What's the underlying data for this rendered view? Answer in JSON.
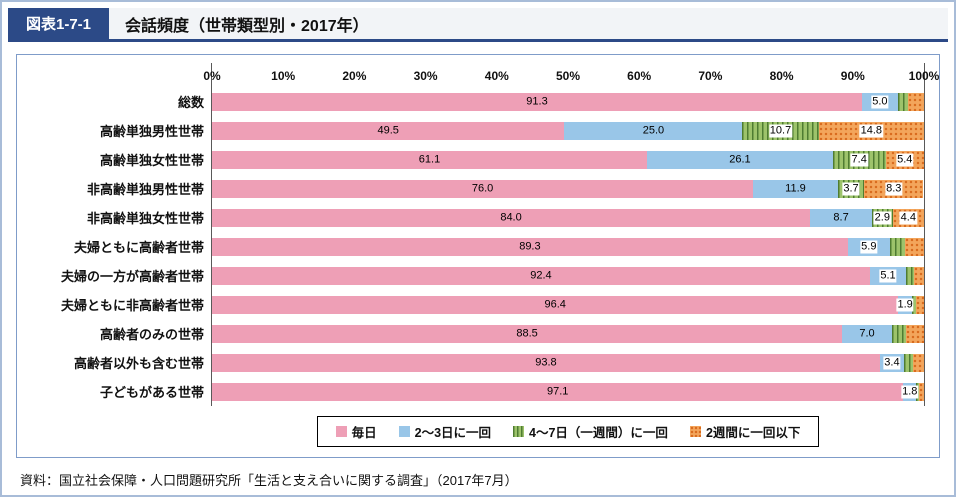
{
  "header": {
    "figure_label": "図表1-7-1",
    "title": "会話頻度（世帯類型別・2017年）"
  },
  "source": "資料：国立社会保障・人口問題研究所「生活と支え合いに関する調査」（2017年7月）",
  "chart_data": {
    "type": "bar",
    "subtype": "horizontal-stacked",
    "title": "会話頻度（世帯類型別・2017年）",
    "xlim": [
      0,
      100
    ],
    "x_ticks": [
      "0%",
      "10%",
      "20%",
      "30%",
      "40%",
      "50%",
      "60%",
      "70%",
      "80%",
      "90%",
      "100%"
    ],
    "grid": false,
    "legend_position": "bottom",
    "series": [
      {
        "name": "毎日",
        "color": "#ee9fb6",
        "pattern": "solid"
      },
      {
        "name": "2～3日に一回",
        "color": "#99c6e8",
        "pattern": "solid"
      },
      {
        "name": "4～7日（一週間）に一回",
        "color": "#9dc36b",
        "pattern": "vertical-stripes",
        "pattern_color": "#4f7c32"
      },
      {
        "name": "2週間に一回以下",
        "color": "#f3a55b",
        "pattern": "dots",
        "pattern_color": "#d96c1f"
      }
    ],
    "rows": [
      {
        "category": "総数",
        "values": [
          91.3,
          5.0,
          1.5,
          2.2
        ],
        "labels": [
          "91.3",
          "5.0",
          "",
          ""
        ]
      },
      {
        "category": "高齢単独男性世帯",
        "values": [
          49.5,
          25.0,
          10.7,
          14.8
        ],
        "labels": [
          "49.5",
          "25.0",
          "10.7",
          "14.8"
        ]
      },
      {
        "category": "高齢単独女性世帯",
        "values": [
          61.1,
          26.1,
          7.4,
          5.4
        ],
        "labels": [
          "61.1",
          "26.1",
          "7.4",
          "5.4"
        ]
      },
      {
        "category": "非高齢単独男性世帯",
        "values": [
          76.0,
          11.9,
          3.7,
          8.3
        ],
        "labels": [
          "76.0",
          "11.9",
          "3.7",
          "8.3"
        ]
      },
      {
        "category": "非高齢単独女性世帯",
        "values": [
          84.0,
          8.7,
          2.9,
          4.4
        ],
        "labels": [
          "84.0",
          "8.7",
          "2.9",
          "4.4"
        ]
      },
      {
        "category": "夫婦ともに高齢者世帯",
        "values": [
          89.3,
          5.9,
          2.2,
          2.6
        ],
        "labels": [
          "89.3",
          "5.9",
          "",
          ""
        ]
      },
      {
        "category": "夫婦の一方が高齢者世帯",
        "values": [
          92.4,
          5.1,
          1.1,
          1.4
        ],
        "labels": [
          "92.4",
          "5.1",
          "",
          ""
        ]
      },
      {
        "category": "夫婦ともに非高齢者世帯",
        "values": [
          96.4,
          1.9,
          0.6,
          1.1
        ],
        "labels": [
          "96.4",
          "1.9",
          "",
          ""
        ]
      },
      {
        "category": "高齢者のみの世帯",
        "values": [
          88.5,
          7.0,
          2.0,
          2.5
        ],
        "labels": [
          "88.5",
          "7.0",
          "",
          ""
        ]
      },
      {
        "category": "高齢者以外も含む世帯",
        "values": [
          93.8,
          3.4,
          1.2,
          1.6
        ],
        "labels": [
          "93.8",
          "3.4",
          "",
          ""
        ]
      },
      {
        "category": "子どもがある世帯",
        "values": [
          97.1,
          1.8,
          0.4,
          0.7
        ],
        "labels": [
          "97.1",
          "1.8",
          "",
          ""
        ]
      }
    ]
  }
}
